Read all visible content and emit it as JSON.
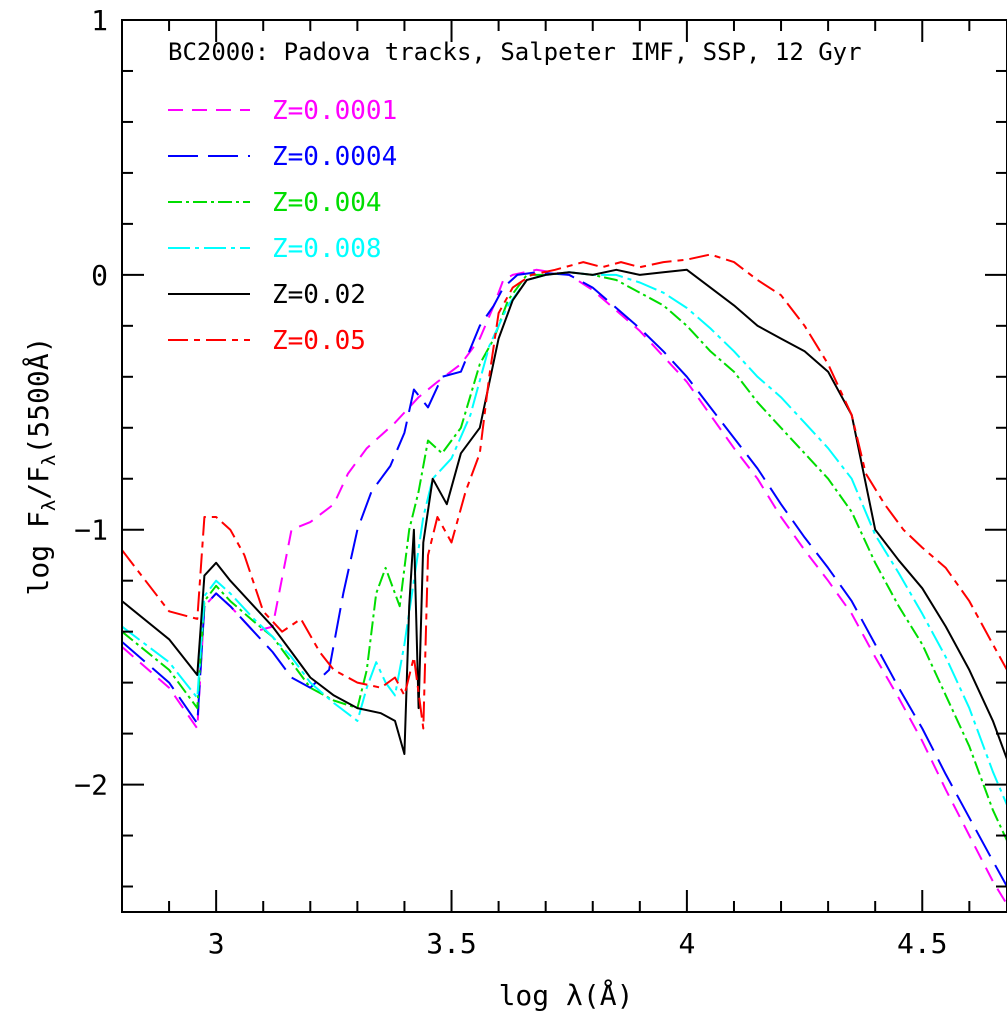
{
  "chart_data": {
    "type": "line",
    "title": "BC2000: Padova tracks, Salpeter IMF, SSP, 12 Gyr",
    "xlabel": "log λ(Å)",
    "ylabel_parts": [
      "log F",
      "λ",
      "/F",
      "λ",
      "(5500Å)"
    ],
    "xlim": [
      2.8,
      4.68
    ],
    "ylim": [
      -2.5,
      1.0
    ],
    "x_ticks": [
      {
        "value": 3.0,
        "label": "3"
      },
      {
        "value": 3.5,
        "label": "3.5"
      },
      {
        "value": 4.0,
        "label": "4"
      },
      {
        "value": 4.5,
        "label": "4.5"
      }
    ],
    "y_ticks": [
      {
        "value": 1,
        "label": "1"
      },
      {
        "value": 0,
        "label": "0"
      },
      {
        "value": -1,
        "label": "−1"
      },
      {
        "value": -2,
        "label": "−2"
      }
    ],
    "grid": false,
    "legend_position": "top-left",
    "series": [
      {
        "name": "Z=0.0001",
        "color": "#ff00ff",
        "dash": "15 9",
        "points": [
          [
            2.8,
            -1.46
          ],
          [
            2.9,
            -1.62
          ],
          [
            2.96,
            -1.78
          ],
          [
            2.975,
            -1.3
          ],
          [
            3.0,
            -1.25
          ],
          [
            3.03,
            -1.3
          ],
          [
            3.08,
            -1.4
          ],
          [
            3.12,
            -1.38
          ],
          [
            3.16,
            -1.0
          ],
          [
            3.2,
            -0.97
          ],
          [
            3.25,
            -0.9
          ],
          [
            3.28,
            -0.78
          ],
          [
            3.32,
            -0.68
          ],
          [
            3.38,
            -0.58
          ],
          [
            3.43,
            -0.48
          ],
          [
            3.47,
            -0.42
          ],
          [
            3.52,
            -0.35
          ],
          [
            3.56,
            -0.25
          ],
          [
            3.59,
            -0.12
          ],
          [
            3.61,
            -0.02
          ],
          [
            3.63,
            0.0
          ],
          [
            3.68,
            0.02
          ],
          [
            3.75,
            0.0
          ],
          [
            3.8,
            -0.06
          ],
          [
            3.85,
            -0.14
          ],
          [
            3.9,
            -0.22
          ],
          [
            3.95,
            -0.32
          ],
          [
            4.0,
            -0.42
          ],
          [
            4.05,
            -0.55
          ],
          [
            4.1,
            -0.68
          ],
          [
            4.15,
            -0.8
          ],
          [
            4.2,
            -0.95
          ],
          [
            4.25,
            -1.08
          ],
          [
            4.3,
            -1.2
          ],
          [
            4.35,
            -1.33
          ],
          [
            4.4,
            -1.5
          ],
          [
            4.45,
            -1.66
          ],
          [
            4.5,
            -1.83
          ],
          [
            4.55,
            -2.02
          ],
          [
            4.6,
            -2.2
          ],
          [
            4.65,
            -2.38
          ],
          [
            4.68,
            -2.47
          ]
        ]
      },
      {
        "name": "Z=0.0004",
        "color": "#0000ff",
        "dash": "30 10",
        "points": [
          [
            2.8,
            -1.44
          ],
          [
            2.9,
            -1.6
          ],
          [
            2.96,
            -1.76
          ],
          [
            2.975,
            -1.3
          ],
          [
            3.0,
            -1.25
          ],
          [
            3.03,
            -1.3
          ],
          [
            3.08,
            -1.4
          ],
          [
            3.12,
            -1.48
          ],
          [
            3.16,
            -1.58
          ],
          [
            3.2,
            -1.62
          ],
          [
            3.24,
            -1.55
          ],
          [
            3.27,
            -1.25
          ],
          [
            3.3,
            -1.0
          ],
          [
            3.33,
            -0.85
          ],
          [
            3.37,
            -0.75
          ],
          [
            3.4,
            -0.62
          ],
          [
            3.42,
            -0.45
          ],
          [
            3.45,
            -0.52
          ],
          [
            3.48,
            -0.4
          ],
          [
            3.52,
            -0.38
          ],
          [
            3.56,
            -0.2
          ],
          [
            3.59,
            -0.12
          ],
          [
            3.61,
            -0.05
          ],
          [
            3.64,
            0.0
          ],
          [
            3.68,
            0.01
          ],
          [
            3.75,
            0.0
          ],
          [
            3.8,
            -0.05
          ],
          [
            3.85,
            -0.13
          ],
          [
            3.9,
            -0.21
          ],
          [
            3.95,
            -0.3
          ],
          [
            4.0,
            -0.4
          ],
          [
            4.05,
            -0.52
          ],
          [
            4.1,
            -0.64
          ],
          [
            4.15,
            -0.76
          ],
          [
            4.2,
            -0.9
          ],
          [
            4.25,
            -1.03
          ],
          [
            4.3,
            -1.15
          ],
          [
            4.35,
            -1.28
          ],
          [
            4.4,
            -1.45
          ],
          [
            4.45,
            -1.62
          ],
          [
            4.5,
            -1.78
          ],
          [
            4.55,
            -1.96
          ],
          [
            4.6,
            -2.13
          ],
          [
            4.65,
            -2.3
          ],
          [
            4.68,
            -2.4
          ]
        ]
      },
      {
        "name": "Z=0.004",
        "color": "#00dd00",
        "dash": "14 4 3 4",
        "points": [
          [
            2.8,
            -1.4
          ],
          [
            2.9,
            -1.55
          ],
          [
            2.96,
            -1.7
          ],
          [
            2.975,
            -1.28
          ],
          [
            3.0,
            -1.22
          ],
          [
            3.03,
            -1.28
          ],
          [
            3.08,
            -1.36
          ],
          [
            3.12,
            -1.42
          ],
          [
            3.16,
            -1.52
          ],
          [
            3.2,
            -1.62
          ],
          [
            3.25,
            -1.67
          ],
          [
            3.3,
            -1.7
          ],
          [
            3.32,
            -1.55
          ],
          [
            3.34,
            -1.25
          ],
          [
            3.36,
            -1.15
          ],
          [
            3.39,
            -1.3
          ],
          [
            3.41,
            -1.0
          ],
          [
            3.43,
            -0.85
          ],
          [
            3.45,
            -0.65
          ],
          [
            3.48,
            -0.7
          ],
          [
            3.52,
            -0.6
          ],
          [
            3.56,
            -0.35
          ],
          [
            3.59,
            -0.25
          ],
          [
            3.62,
            -0.1
          ],
          [
            3.66,
            0.0
          ],
          [
            3.7,
            0.0
          ],
          [
            3.75,
            0.01
          ],
          [
            3.8,
            0.0
          ],
          [
            3.85,
            -0.02
          ],
          [
            3.9,
            -0.07
          ],
          [
            3.95,
            -0.12
          ],
          [
            4.0,
            -0.2
          ],
          [
            4.05,
            -0.3
          ],
          [
            4.1,
            -0.38
          ],
          [
            4.15,
            -0.5
          ],
          [
            4.2,
            -0.6
          ],
          [
            4.25,
            -0.7
          ],
          [
            4.3,
            -0.8
          ],
          [
            4.35,
            -0.93
          ],
          [
            4.4,
            -1.13
          ],
          [
            4.45,
            -1.3
          ],
          [
            4.5,
            -1.45
          ],
          [
            4.55,
            -1.65
          ],
          [
            4.6,
            -1.85
          ],
          [
            4.65,
            -2.1
          ],
          [
            4.68,
            -2.22
          ]
        ]
      },
      {
        "name": "Z=0.008",
        "color": "#00ffff",
        "dash": "22 5 4 5",
        "points": [
          [
            2.8,
            -1.38
          ],
          [
            2.9,
            -1.52
          ],
          [
            2.96,
            -1.66
          ],
          [
            2.975,
            -1.26
          ],
          [
            3.0,
            -1.2
          ],
          [
            3.03,
            -1.25
          ],
          [
            3.08,
            -1.35
          ],
          [
            3.12,
            -1.42
          ],
          [
            3.16,
            -1.5
          ],
          [
            3.2,
            -1.6
          ],
          [
            3.25,
            -1.68
          ],
          [
            3.3,
            -1.75
          ],
          [
            3.32,
            -1.62
          ],
          [
            3.34,
            -1.52
          ],
          [
            3.36,
            -1.6
          ],
          [
            3.38,
            -1.65
          ],
          [
            3.4,
            -1.45
          ],
          [
            3.42,
            -1.2
          ],
          [
            3.44,
            -0.95
          ],
          [
            3.46,
            -0.8
          ],
          [
            3.5,
            -0.72
          ],
          [
            3.54,
            -0.55
          ],
          [
            3.58,
            -0.28
          ],
          [
            3.62,
            -0.12
          ],
          [
            3.66,
            -0.02
          ],
          [
            3.7,
            0.0
          ],
          [
            3.75,
            0.01
          ],
          [
            3.8,
            0.0
          ],
          [
            3.85,
            0.0
          ],
          [
            3.9,
            -0.03
          ],
          [
            3.95,
            -0.07
          ],
          [
            4.0,
            -0.13
          ],
          [
            4.05,
            -0.21
          ],
          [
            4.1,
            -0.3
          ],
          [
            4.15,
            -0.4
          ],
          [
            4.2,
            -0.48
          ],
          [
            4.25,
            -0.58
          ],
          [
            4.3,
            -0.68
          ],
          [
            4.35,
            -0.8
          ],
          [
            4.4,
            -1.02
          ],
          [
            4.45,
            -1.17
          ],
          [
            4.5,
            -1.33
          ],
          [
            4.55,
            -1.5
          ],
          [
            4.6,
            -1.7
          ],
          [
            4.65,
            -1.95
          ],
          [
            4.68,
            -2.08
          ]
        ]
      },
      {
        "name": "Z=0.02",
        "color": "#000000",
        "dash": "",
        "points": [
          [
            2.8,
            -1.28
          ],
          [
            2.9,
            -1.43
          ],
          [
            2.96,
            -1.57
          ],
          [
            2.975,
            -1.18
          ],
          [
            3.0,
            -1.13
          ],
          [
            3.03,
            -1.2
          ],
          [
            3.08,
            -1.3
          ],
          [
            3.12,
            -1.38
          ],
          [
            3.16,
            -1.48
          ],
          [
            3.2,
            -1.58
          ],
          [
            3.25,
            -1.65
          ],
          [
            3.3,
            -1.7
          ],
          [
            3.35,
            -1.72
          ],
          [
            3.38,
            -1.75
          ],
          [
            3.4,
            -1.88
          ],
          [
            3.41,
            -1.3
          ],
          [
            3.42,
            -1.0
          ],
          [
            3.43,
            -1.7
          ],
          [
            3.44,
            -1.05
          ],
          [
            3.46,
            -0.8
          ],
          [
            3.49,
            -0.9
          ],
          [
            3.52,
            -0.7
          ],
          [
            3.56,
            -0.6
          ],
          [
            3.6,
            -0.25
          ],
          [
            3.63,
            -0.1
          ],
          [
            3.66,
            -0.02
          ],
          [
            3.7,
            0.0
          ],
          [
            3.75,
            0.01
          ],
          [
            3.8,
            0.0
          ],
          [
            3.85,
            0.02
          ],
          [
            3.9,
            0.0
          ],
          [
            3.95,
            0.01
          ],
          [
            4.0,
            0.02
          ],
          [
            4.05,
            -0.05
          ],
          [
            4.1,
            -0.12
          ],
          [
            4.15,
            -0.2
          ],
          [
            4.2,
            -0.25
          ],
          [
            4.25,
            -0.3
          ],
          [
            4.3,
            -0.38
          ],
          [
            4.35,
            -0.55
          ],
          [
            4.4,
            -1.0
          ],
          [
            4.45,
            -1.12
          ],
          [
            4.5,
            -1.23
          ],
          [
            4.55,
            -1.38
          ],
          [
            4.6,
            -1.55
          ],
          [
            4.65,
            -1.75
          ],
          [
            4.68,
            -1.9
          ]
        ]
      },
      {
        "name": "Z=0.05",
        "color": "#ff0000",
        "dash": "20 6 6 6",
        "points": [
          [
            2.8,
            -1.08
          ],
          [
            2.85,
            -1.2
          ],
          [
            2.9,
            -1.32
          ],
          [
            2.96,
            -1.35
          ],
          [
            2.975,
            -0.95
          ],
          [
            3.0,
            -0.95
          ],
          [
            3.03,
            -1.0
          ],
          [
            3.06,
            -1.1
          ],
          [
            3.1,
            -1.32
          ],
          [
            3.14,
            -1.4
          ],
          [
            3.18,
            -1.35
          ],
          [
            3.22,
            -1.48
          ],
          [
            3.25,
            -1.55
          ],
          [
            3.3,
            -1.6
          ],
          [
            3.35,
            -1.62
          ],
          [
            3.38,
            -1.58
          ],
          [
            3.4,
            -1.65
          ],
          [
            3.42,
            -1.5
          ],
          [
            3.44,
            -1.78
          ],
          [
            3.45,
            -1.1
          ],
          [
            3.47,
            -0.95
          ],
          [
            3.5,
            -1.05
          ],
          [
            3.53,
            -0.85
          ],
          [
            3.56,
            -0.7
          ],
          [
            3.58,
            -0.4
          ],
          [
            3.6,
            -0.15
          ],
          [
            3.63,
            -0.05
          ],
          [
            3.67,
            0.0
          ],
          [
            3.72,
            0.02
          ],
          [
            3.78,
            0.05
          ],
          [
            3.82,
            0.03
          ],
          [
            3.86,
            0.05
          ],
          [
            3.9,
            0.03
          ],
          [
            3.95,
            0.05
          ],
          [
            4.0,
            0.06
          ],
          [
            4.05,
            0.08
          ],
          [
            4.1,
            0.05
          ],
          [
            4.15,
            -0.02
          ],
          [
            4.2,
            -0.08
          ],
          [
            4.25,
            -0.2
          ],
          [
            4.3,
            -0.35
          ],
          [
            4.35,
            -0.55
          ],
          [
            4.38,
            -0.78
          ],
          [
            4.42,
            -0.9
          ],
          [
            4.46,
            -1.0
          ],
          [
            4.5,
            -1.07
          ],
          [
            4.55,
            -1.15
          ],
          [
            4.6,
            -1.28
          ],
          [
            4.65,
            -1.45
          ],
          [
            4.68,
            -1.55
          ]
        ]
      }
    ]
  }
}
